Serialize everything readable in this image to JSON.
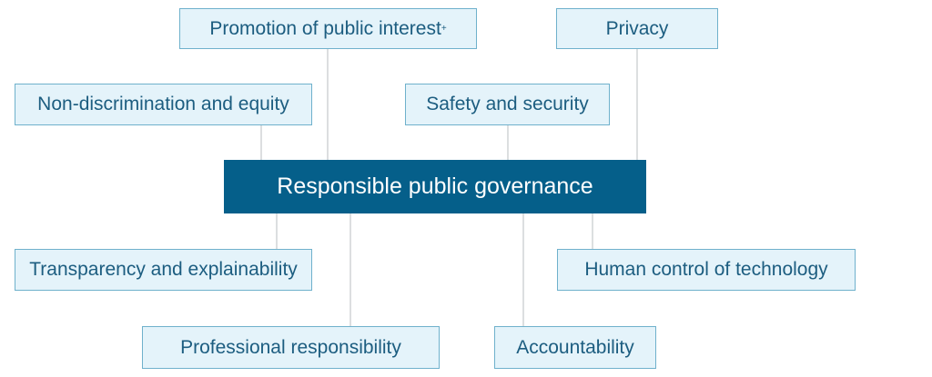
{
  "diagram": {
    "center": "Responsible public governance",
    "principles": {
      "promotion": {
        "label": "Promotion of public interest",
        "marker": "+"
      },
      "privacy": {
        "label": "Privacy"
      },
      "non_discrimination": {
        "label": "Non-discrimination and equity"
      },
      "safety": {
        "label": "Safety and security"
      },
      "transparency": {
        "label": "Transparency and explainability"
      },
      "human_control": {
        "label": "Human control of technology"
      },
      "professional": {
        "label": "Professional responsibility"
      },
      "accountability": {
        "label": "Accountability"
      }
    }
  },
  "colors": {
    "center_fill": "#055f8a",
    "center_text": "#ffffff",
    "box_fill": "#e4f3fa",
    "box_border": "#6fb1cc",
    "box_text": "#1c5d80",
    "connector": "#c5c9cc"
  }
}
